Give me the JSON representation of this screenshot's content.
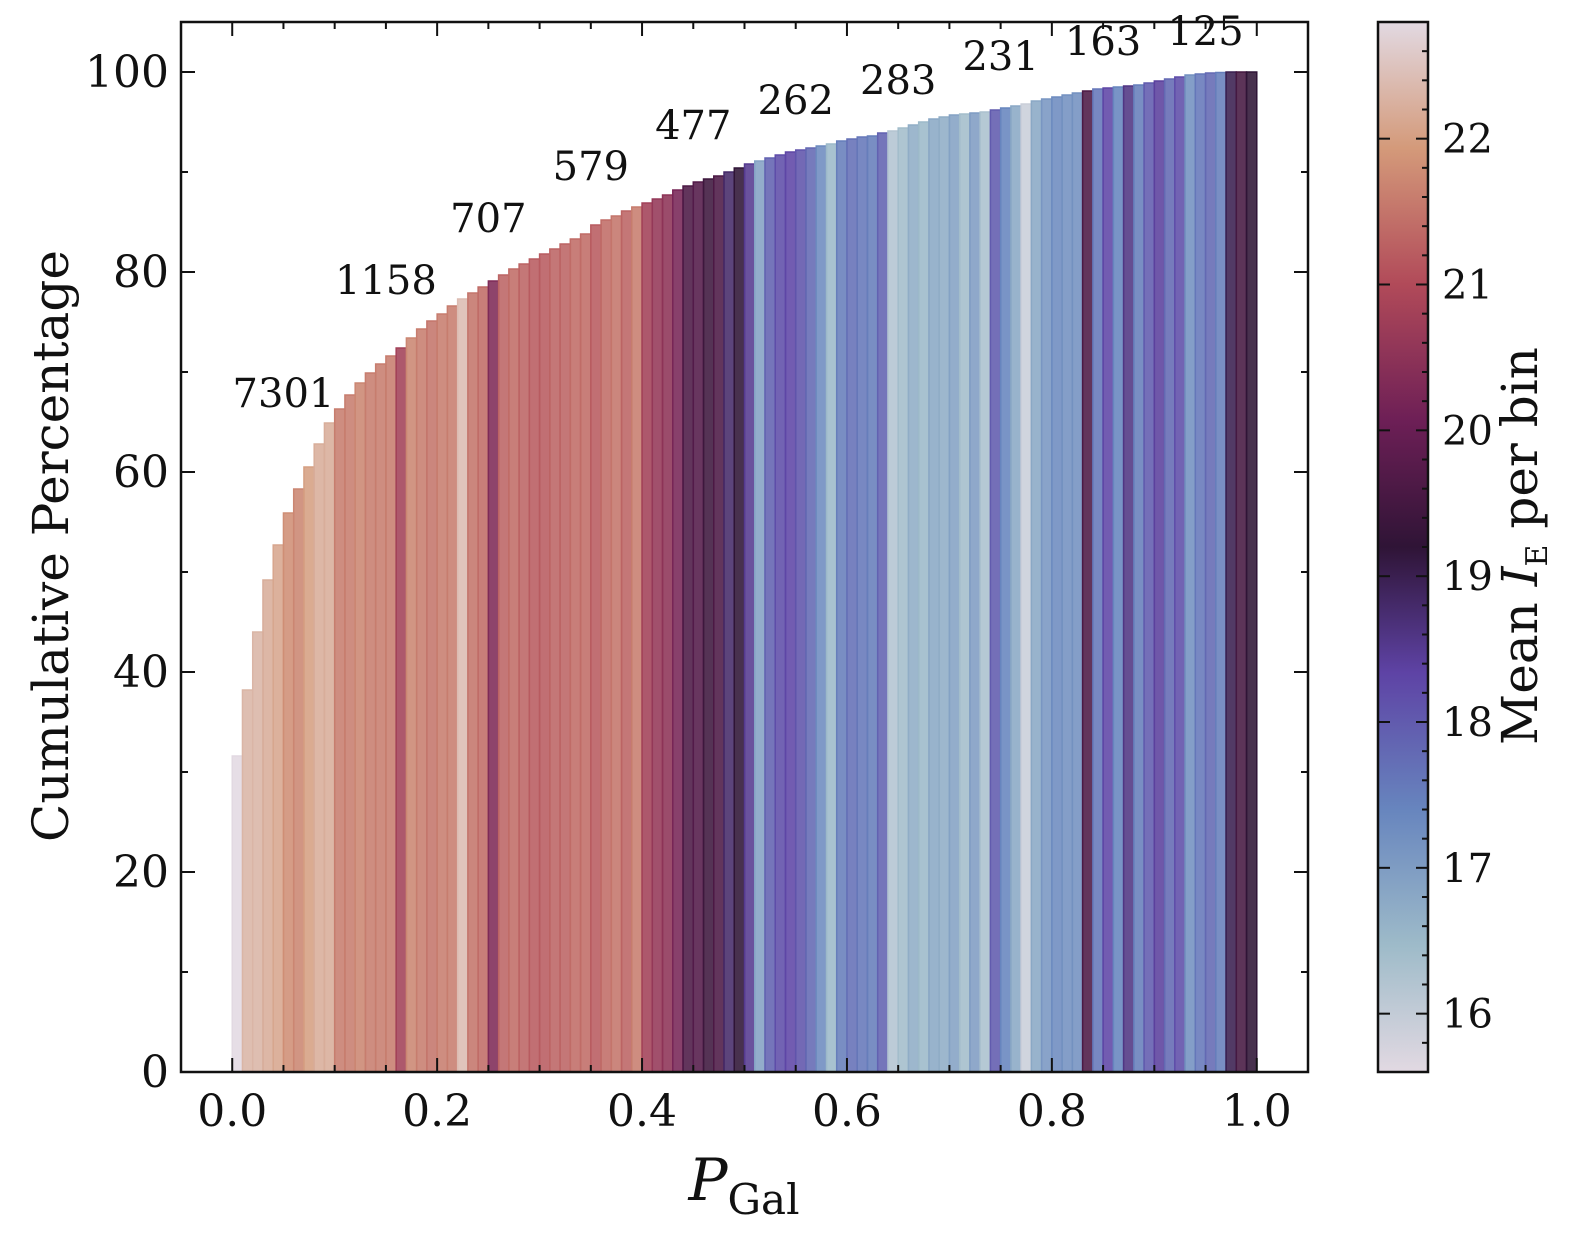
{
  "chart_data": {
    "type": "bar",
    "subtype": "cumulative histogram colored by mean magnitude",
    "xlabel_main": "P",
    "xlabel_sub": "Gal",
    "ylabel": "Cumulative Percentage",
    "colorbar_label_prefix": "Mean ",
    "colorbar_label_var": "I",
    "colorbar_label_sub": "E",
    "colorbar_label_suffix": " per bin",
    "xlim": [
      -0.05,
      1.05
    ],
    "ylim": [
      0,
      105
    ],
    "x_ticks": [
      0.0,
      0.2,
      0.4,
      0.6,
      0.8,
      1.0
    ],
    "x_tick_labels": [
      "0.0",
      "0.2",
      "0.4",
      "0.6",
      "0.8",
      "1.0"
    ],
    "y_ticks": [
      0,
      20,
      40,
      60,
      80,
      100
    ],
    "y_tick_labels": [
      "0",
      "20",
      "40",
      "60",
      "80",
      "100"
    ],
    "colorbar_range": [
      15.6,
      22.8
    ],
    "colorbar_ticks": [
      16,
      17,
      18,
      19,
      20,
      21,
      22
    ],
    "colorbar_tick_labels": [
      "16",
      "17",
      "18",
      "19",
      "20",
      "21",
      "22"
    ],
    "bin_width": 0.01,
    "bin_left_edges": [
      0.0,
      0.01,
      0.02,
      0.03,
      0.04,
      0.05,
      0.06,
      0.07,
      0.08,
      0.09,
      0.1,
      0.11,
      0.12,
      0.13,
      0.14,
      0.15,
      0.16,
      0.17,
      0.18,
      0.19,
      0.2,
      0.21,
      0.22,
      0.23,
      0.24,
      0.25,
      0.26,
      0.27,
      0.28,
      0.29,
      0.3,
      0.31,
      0.32,
      0.33,
      0.34,
      0.35,
      0.36,
      0.37,
      0.38,
      0.39,
      0.4,
      0.41,
      0.42,
      0.43,
      0.44,
      0.45,
      0.46,
      0.47,
      0.48,
      0.49,
      0.5,
      0.51,
      0.52,
      0.53,
      0.54,
      0.55,
      0.56,
      0.57,
      0.58,
      0.59,
      0.6,
      0.61,
      0.62,
      0.63,
      0.64,
      0.65,
      0.66,
      0.67,
      0.68,
      0.69,
      0.7,
      0.71,
      0.72,
      0.73,
      0.74,
      0.75,
      0.76,
      0.77,
      0.78,
      0.79,
      0.8,
      0.81,
      0.82,
      0.83,
      0.84,
      0.85,
      0.86,
      0.87,
      0.88,
      0.89,
      0.9,
      0.91,
      0.92,
      0.93,
      0.94,
      0.95,
      0.96,
      0.97,
      0.98,
      0.99
    ],
    "cumulative_percentage": [
      31.6,
      38.2,
      44.0,
      49.2,
      52.7,
      55.9,
      58.3,
      60.5,
      62.8,
      64.9,
      66.3,
      67.7,
      68.9,
      69.9,
      70.8,
      71.6,
      72.4,
      73.4,
      74.3,
      75.1,
      75.8,
      76.6,
      77.3,
      77.9,
      78.5,
      79.1,
      79.7,
      80.3,
      80.8,
      81.3,
      81.8,
      82.3,
      82.8,
      83.3,
      83.8,
      84.7,
      85.2,
      85.6,
      86.1,
      86.5,
      86.9,
      87.3,
      87.7,
      88.2,
      88.6,
      89.0,
      89.3,
      89.6,
      90.0,
      90.4,
      90.8,
      91.1,
      91.4,
      91.7,
      92.0,
      92.2,
      92.4,
      92.6,
      92.8,
      93.1,
      93.3,
      93.5,
      93.6,
      93.9,
      94.1,
      94.4,
      94.7,
      95.0,
      95.3,
      95.5,
      95.7,
      95.8,
      95.9,
      96.0,
      96.2,
      96.4,
      96.6,
      96.8,
      97.1,
      97.3,
      97.5,
      97.7,
      97.9,
      98.1,
      98.3,
      98.4,
      98.5,
      98.6,
      98.7,
      98.9,
      99.1,
      99.3,
      99.5,
      99.7,
      99.8,
      99.9,
      99.95,
      100.0,
      100.0,
      100.0
    ],
    "mean_IE_per_bin": [
      15.6,
      22.3,
      22.3,
      22.2,
      22.1,
      21.8,
      21.7,
      22.0,
      22.2,
      22.2,
      21.6,
      21.6,
      21.7,
      21.6,
      21.6,
      21.6,
      20.8,
      21.7,
      21.6,
      21.5,
      21.6,
      21.6,
      22.4,
      21.5,
      21.4,
      20.3,
      21.3,
      21.4,
      21.3,
      21.2,
      21.2,
      21.3,
      21.3,
      21.4,
      21.4,
      21.2,
      21.4,
      21.5,
      21.3,
      21.6,
      20.8,
      20.6,
      20.5,
      20.2,
      19.6,
      19.7,
      19.4,
      19.6,
      18.8,
      19.2,
      18.5,
      16.9,
      17.9,
      18.2,
      18.3,
      18.1,
      17.8,
      17.3,
      16.5,
      17.5,
      17.7,
      17.6,
      17.5,
      17.9,
      16.2,
      16.4,
      16.7,
      16.5,
      16.8,
      16.7,
      16.9,
      16.4,
      17.0,
      16.3,
      18.0,
      17.4,
      16.8,
      15.9,
      16.8,
      17.1,
      17.3,
      17.2,
      17.2,
      19.6,
      17.6,
      18.3,
      17.4,
      18.6,
      17.5,
      18.0,
      18.4,
      17.8,
      18.2,
      17.2,
      17.6,
      17.8,
      17.5,
      19.0,
      19.5,
      19.2
    ],
    "annotations": [
      {
        "text": "7301",
        "x": 0.05,
        "y": 66.5
      },
      {
        "text": "1158",
        "x": 0.15,
        "y": 77.8
      },
      {
        "text": "707",
        "x": 0.25,
        "y": 84.0
      },
      {
        "text": "579",
        "x": 0.35,
        "y": 89.2
      },
      {
        "text": "477",
        "x": 0.45,
        "y": 93.3
      },
      {
        "text": "262",
        "x": 0.55,
        "y": 95.8
      },
      {
        "text": "283",
        "x": 0.65,
        "y": 97.8
      },
      {
        "text": "231",
        "x": 0.75,
        "y": 100.2
      },
      {
        "text": "163",
        "x": 0.85,
        "y": 101.7
      },
      {
        "text": "125",
        "x": 0.95,
        "y": 102.7
      }
    ],
    "colormap_stops": [
      {
        "v": 0.0,
        "color": "#e2d9e2"
      },
      {
        "v": 0.12,
        "color": "#9ebbc9"
      },
      {
        "v": 0.25,
        "color": "#6785be"
      },
      {
        "v": 0.38,
        "color": "#5e43a5"
      },
      {
        "v": 0.5,
        "color": "#2f1436"
      },
      {
        "v": 0.62,
        "color": "#6d1f56"
      },
      {
        "v": 0.75,
        "color": "#b14a59"
      },
      {
        "v": 0.88,
        "color": "#d49a7a"
      },
      {
        "v": 1.0,
        "color": "#e2d9e2"
      }
    ]
  }
}
